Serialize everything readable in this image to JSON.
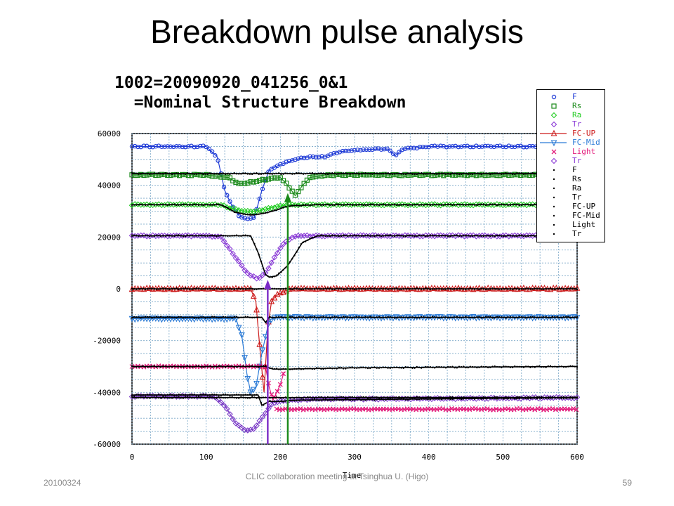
{
  "slide": {
    "title": "Breakdown pulse analysis",
    "footer_date": "20100324",
    "footer_center": "CLIC collaboration meeting at Tsinghua U. (Higo)",
    "page_number": "59"
  },
  "chart_data": {
    "type": "line",
    "title_line1": "1002=20090920_041256_0&1",
    "title_line2": "  =Nominal Structure Breakdown",
    "xlabel": "Time",
    "ylabel": "",
    "xlim": [
      0,
      600
    ],
    "ylim": [
      -60000,
      60000
    ],
    "x_ticks": [
      0,
      100,
      200,
      300,
      400,
      500,
      600
    ],
    "y_ticks": [
      60000,
      40000,
      20000,
      0,
      -20000,
      -40000,
      -60000
    ],
    "grid": true,
    "legend_position": "top-right",
    "series": [
      {
        "name": "F",
        "color": "#1f3bd6",
        "marker": "circle",
        "x": [
          0,
          100,
          115,
          125,
          135,
          145,
          155,
          165,
          175,
          185,
          200,
          220,
          240,
          260,
          280,
          300,
          330,
          345,
          355,
          365,
          400,
          500,
          600
        ],
        "y": [
          55000,
          55000,
          51000,
          38000,
          32000,
          28000,
          27000,
          27500,
          38000,
          46000,
          48000,
          50000,
          51000,
          51000,
          53000,
          53500,
          54000,
          54000,
          51500,
          54000,
          55000,
          55000,
          55000
        ]
      },
      {
        "name": "Rs",
        "color": "#1a8a1a",
        "marker": "square",
        "x": [
          0,
          100,
          130,
          145,
          165,
          185,
          200,
          210,
          220,
          230,
          240,
          260,
          300,
          600
        ],
        "y": [
          44000,
          44000,
          43000,
          40500,
          41500,
          42500,
          43000,
          40000,
          36000,
          40000,
          43000,
          44000,
          44000,
          44000
        ]
      },
      {
        "name": "Ra",
        "color": "#22cc22",
        "marker": "diamond",
        "x": [
          0,
          120,
          130,
          150,
          170,
          190,
          210,
          230,
          600
        ],
        "y": [
          32500,
          32500,
          31500,
          30000,
          30000,
          31500,
          32500,
          32500,
          32500
        ]
      },
      {
        "name": "Tr",
        "color": "#8a3ad6",
        "marker": "diamond",
        "x": [
          0,
          100,
          120,
          135,
          150,
          160,
          170,
          180,
          190,
          200,
          215,
          230,
          600
        ],
        "y": [
          20500,
          20500,
          20000,
          14000,
          8000,
          5000,
          4000,
          6000,
          11000,
          16000,
          20000,
          20500,
          20500
        ]
      },
      {
        "name": "FC-UP",
        "color": "#cc1a1a",
        "marker": "triangle-up",
        "x": [
          0,
          160,
          167,
          173,
          178,
          183,
          188,
          193,
          198,
          205,
          215,
          600
        ],
        "y": [
          0,
          0,
          -5000,
          -25000,
          -40000,
          -15000,
          -5000,
          -3000,
          -2000,
          -1000,
          0,
          0
        ]
      },
      {
        "name": "FC-Mid",
        "color": "#2a7ad6",
        "marker": "triangle-down",
        "x": [
          0,
          140,
          148,
          155,
          160,
          167,
          175,
          185,
          195,
          210,
          600
        ],
        "y": [
          -11500,
          -11500,
          -18000,
          -33000,
          -40000,
          -38000,
          -25000,
          -12000,
          -11000,
          -11000,
          -11000
        ]
      },
      {
        "name": "Light",
        "color": "#e21a7a",
        "marker": "x",
        "x": [
          0,
          180,
          185,
          190,
          195,
          200,
          205
        ],
        "y": [
          -30000,
          -30000,
          -38000,
          -43000,
          -40000,
          -37000,
          -32000
        ]
      },
      {
        "name": "Light",
        "color": "#e21a7a",
        "marker": "x",
        "x": [
          195,
          600
        ],
        "y": [
          -46500,
          -46500
        ]
      },
      {
        "name": "Tr",
        "color": "#7a3ac6",
        "marker": "diamond",
        "x": [
          0,
          110,
          125,
          140,
          155,
          165,
          175,
          190,
          210,
          250,
          300,
          360,
          600
        ],
        "y": [
          -41500,
          -41500,
          -45000,
          -52000,
          -55000,
          -54000,
          -50000,
          -44000,
          -43000,
          -42500,
          -42500,
          -42500,
          -42000
        ]
      },
      {
        "name": "F",
        "color": "#000000",
        "marker": "dot",
        "x": [
          0,
          600
        ],
        "y": [
          44500,
          44500
        ]
      },
      {
        "name": "Rs",
        "color": "#000000",
        "marker": "dot",
        "x": [
          0,
          120,
          140,
          160,
          175,
          190,
          210,
          250,
          600
        ],
        "y": [
          32500,
          32500,
          29500,
          28500,
          29000,
          30000,
          32000,
          32500,
          32500
        ]
      },
      {
        "name": "Ra",
        "color": "#000000",
        "marker": "dot",
        "x": [
          0,
          160,
          170,
          180,
          185,
          195,
          210,
          230,
          250,
          600
        ],
        "y": [
          20500,
          20500,
          14000,
          5500,
          4500,
          5000,
          9000,
          18000,
          20500,
          20500
        ]
      },
      {
        "name": "Tr",
        "color": "#000000",
        "marker": "dot",
        "x": [
          0,
          600
        ],
        "y": [
          0,
          0
        ]
      },
      {
        "name": "FC-UP",
        "color": "#000000",
        "marker": "dot",
        "x": [
          0,
          175,
          180,
          185,
          195,
          600
        ],
        "y": [
          -11000,
          -11000,
          -13000,
          -11000,
          -11000,
          -11000
        ]
      },
      {
        "name": "FC-Mid",
        "color": "#000000",
        "marker": "dot",
        "x": [
          0,
          180,
          190,
          195,
          210,
          300,
          600
        ],
        "y": [
          -30000,
          -30000,
          -31000,
          -31000,
          -31000,
          -30500,
          -30000
        ]
      },
      {
        "name": "Light",
        "color": "#000000",
        "marker": "dot",
        "x": [
          0,
          170,
          175,
          185,
          200,
          220,
          600
        ],
        "y": [
          -41000,
          -41000,
          -45000,
          -43500,
          -43500,
          -43000,
          -42000
        ]
      },
      {
        "name": "Tr",
        "color": "#000000",
        "marker": "dot",
        "x": [
          0,
          600
        ],
        "y": [
          -42000,
          -42000
        ]
      }
    ],
    "annotations": [
      {
        "type": "arrow",
        "color": "#7a2ac6",
        "x": 183,
        "y_from": -60000,
        "y_to": 3500
      },
      {
        "type": "arrow",
        "color": "#1a8a1a",
        "x": 210,
        "y_from": -60000,
        "y_to": 37000
      }
    ],
    "legend": [
      {
        "label": "F",
        "color": "#1f3bd6",
        "marker": "circle"
      },
      {
        "label": "Rs",
        "color": "#1a8a1a",
        "marker": "square"
      },
      {
        "label": "Ra",
        "color": "#22cc22",
        "marker": "diamond"
      },
      {
        "label": "Tr",
        "color": "#8a3ad6",
        "marker": "diamond"
      },
      {
        "label": "FC-UP",
        "color": "#cc1a1a",
        "marker": "triangle-up"
      },
      {
        "label": "FC-Mid",
        "color": "#2a7ad6",
        "marker": "triangle-down"
      },
      {
        "label": "Light",
        "color": "#e21a7a",
        "marker": "x"
      },
      {
        "label": "Tr",
        "color": "#8a3ad6",
        "marker": "diamond"
      },
      {
        "label": "F",
        "color": "#000000",
        "marker": "dot"
      },
      {
        "label": "Rs",
        "color": "#000000",
        "marker": "dot"
      },
      {
        "label": "Ra",
        "color": "#000000",
        "marker": "dot"
      },
      {
        "label": "Tr",
        "color": "#000000",
        "marker": "dot"
      },
      {
        "label": "FC-UP",
        "color": "#000000",
        "marker": "dot"
      },
      {
        "label": "FC-Mid",
        "color": "#000000",
        "marker": "dot"
      },
      {
        "label": "Light",
        "color": "#000000",
        "marker": "dot"
      },
      {
        "label": "Tr",
        "color": "#000000",
        "marker": "dot"
      }
    ]
  }
}
